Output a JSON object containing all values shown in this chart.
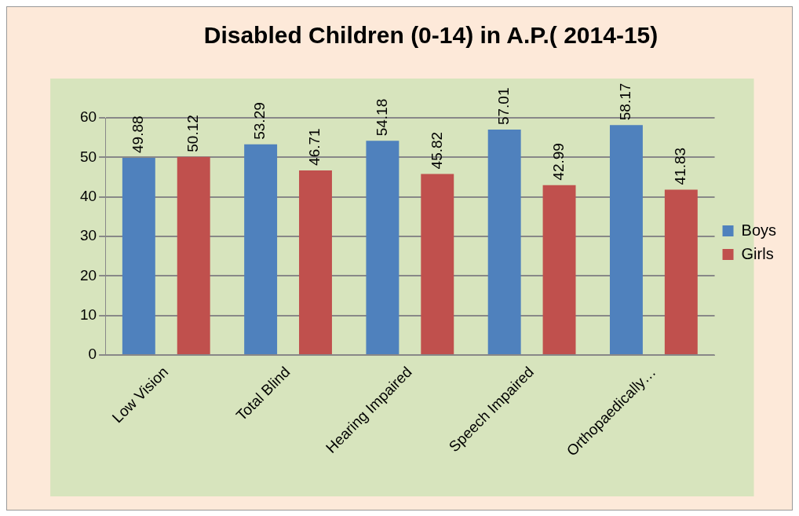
{
  "chart_data": {
    "type": "bar",
    "title": "Disabled Children (0-14) in A.P.( 2014-15)",
    "categories": [
      "Low Vision",
      "Total Blind",
      "Hearing Impaired",
      "Speech Impaired",
      "Orthopaedically…"
    ],
    "series": [
      {
        "name": "Boys",
        "color": "#4f81bd",
        "values": [
          49.88,
          53.29,
          54.18,
          57.01,
          58.17
        ]
      },
      {
        "name": "Girls",
        "color": "#c0504d",
        "values": [
          50.12,
          46.71,
          45.82,
          42.99,
          41.83
        ]
      }
    ],
    "ylim": [
      0,
      60
    ],
    "yticks": [
      0,
      10,
      20,
      30,
      40,
      50,
      60
    ],
    "grid": "y",
    "legend": "right",
    "data_labels": true
  }
}
